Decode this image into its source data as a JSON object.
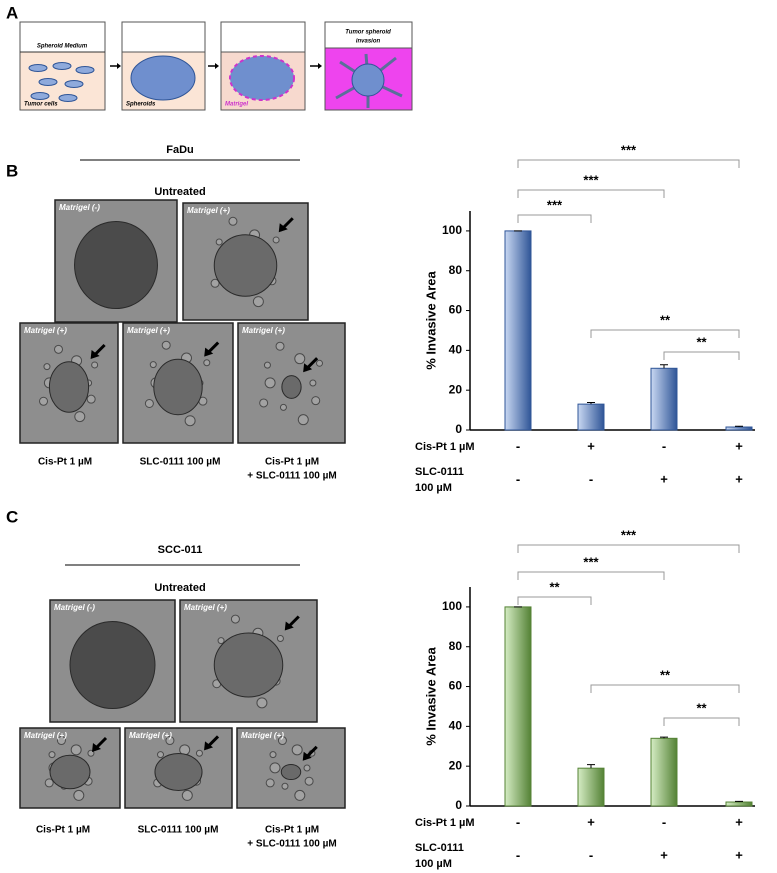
{
  "panel_labels": [
    "A",
    "B",
    "C"
  ],
  "schematic": {
    "steps": [
      "Spheroid Medium",
      "Tumor cells",
      "Spheroids",
      "Matrigel",
      "Tumor spheroid",
      "invasion"
    ]
  },
  "panels": [
    {
      "cell_line": "FaDu",
      "group": "Untreated",
      "image_labels": [
        "Matrigel (-)",
        "Matrigel (+)",
        "Matrigel (+)",
        "Matrigel (+)",
        "Matrigel (+)"
      ],
      "captions": [
        "Cis-Pt 1 µM",
        "SLC-0111 100 µM",
        "Cis-Pt 1 µM",
        "+ SLC-0111 100 µM"
      ]
    },
    {
      "cell_line": "SCC-011",
      "group": "Untreated",
      "image_labels": [
        "Matrigel (-)",
        "Matrigel (+)",
        "Matrigel (+)",
        "Matrigel (+)",
        "Matrigel (+)"
      ],
      "captions": [
        "Cis-Pt 1 µM",
        "SLC-0111 100 µM",
        "Cis-Pt 1 µM",
        "+ SLC-0111 100 µM"
      ]
    }
  ],
  "chart_data": [
    {
      "type": "bar",
      "y_label": "% Invasive Area",
      "color": "#2f5597",
      "light_color": "#c9d8f2",
      "values": [
        100,
        13,
        31,
        1.5
      ],
      "errors": [
        0,
        0.8,
        1.8,
        0.4
      ],
      "ylim": [
        0,
        110
      ],
      "yticks": [
        0,
        20,
        40,
        60,
        80,
        100
      ],
      "significance": [
        "***",
        "***",
        "***",
        "**",
        "**"
      ],
      "treatments": [
        {
          "name": [
            "Cis-Pt 1 µM"
          ],
          "marks": [
            "-",
            "+",
            "-",
            "+"
          ]
        },
        {
          "name": [
            "SLC-0111",
            "100 µM"
          ],
          "marks": [
            "-",
            "-",
            "+",
            "+"
          ]
        }
      ]
    },
    {
      "type": "bar",
      "y_label": "% Invasive Area",
      "color": "#548235",
      "light_color": "#d5ecc4",
      "values": [
        100,
        19,
        34,
        2
      ],
      "errors": [
        0,
        1.8,
        0.6,
        0.3
      ],
      "ylim": [
        0,
        110
      ],
      "yticks": [
        0,
        20,
        40,
        60,
        80,
        100
      ],
      "significance": [
        "***",
        "***",
        "**",
        "**",
        "**"
      ],
      "treatments": [
        {
          "name": [
            "Cis-Pt 1 µM"
          ],
          "marks": [
            "-",
            "+",
            "-",
            "+"
          ]
        },
        {
          "name": [
            "SLC-0111",
            "100 µM"
          ],
          "marks": [
            "-",
            "-",
            "+",
            "+"
          ]
        }
      ]
    }
  ]
}
